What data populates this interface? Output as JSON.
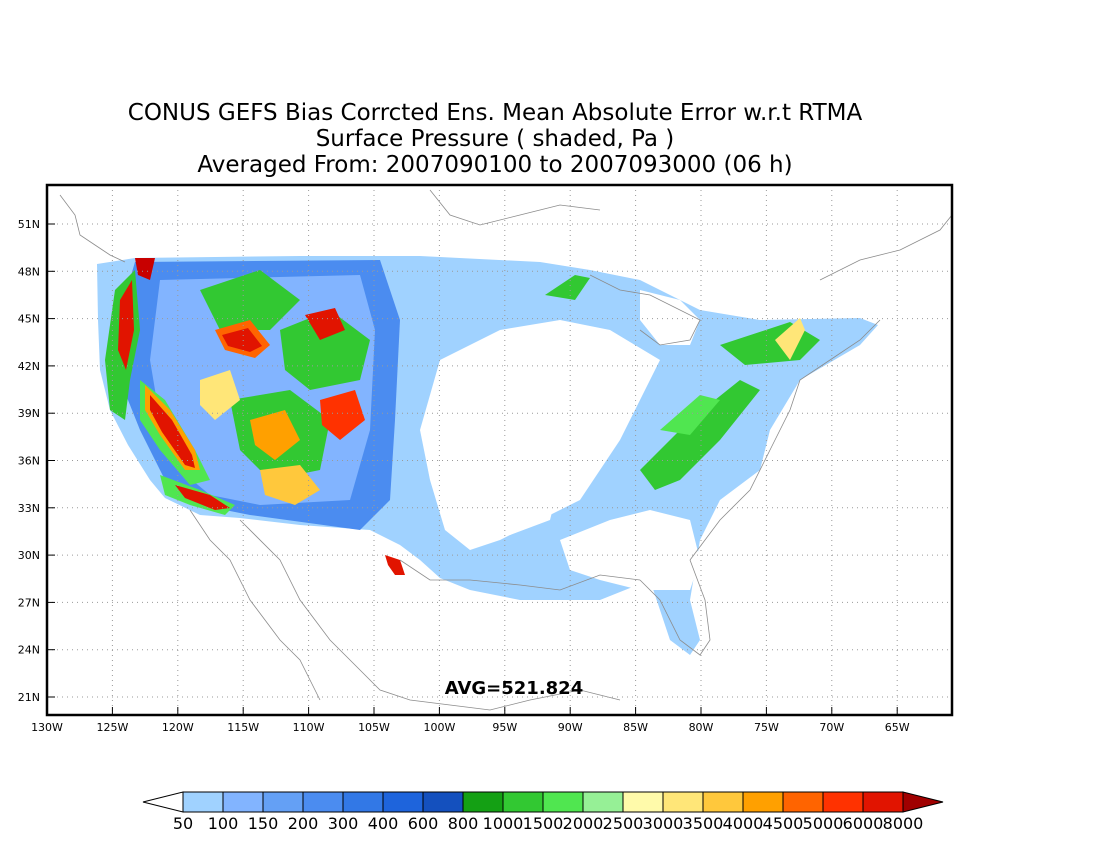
{
  "title": {
    "line1": "CONUS GEFS Bias Corrcted Ens. Mean Absolute Error w.r.t RTMA",
    "line2": "Surface Pressure ( shaded, Pa )",
    "line3": "Averaged From: 2007090100 to 2007093000 (06 h)"
  },
  "avg_label": "AVG=521.824",
  "axes": {
    "lat_labels": [
      "51N",
      "48N",
      "45N",
      "42N",
      "39N",
      "36N",
      "33N",
      "30N",
      "27N",
      "24N",
      "21N"
    ],
    "lon_labels": [
      "130W",
      "125W",
      "120W",
      "115W",
      "110W",
      "105W",
      "100W",
      "95W",
      "90W",
      "85W",
      "80W",
      "75W",
      "70W",
      "65W"
    ]
  },
  "colorbar": {
    "levels": [
      "50",
      "100",
      "150",
      "200",
      "300",
      "400",
      "600",
      "800",
      "1000",
      "1500",
      "2000",
      "2500",
      "3000",
      "3500",
      "4000",
      "4500",
      "5000",
      "6000",
      "8000"
    ],
    "colors": [
      "#a0d2ff",
      "#82b4ff",
      "#64a0f5",
      "#4b8cf0",
      "#3278e6",
      "#1e64dc",
      "#1450be",
      "#14a014",
      "#32c832",
      "#50e650",
      "#96f096",
      "#fffaaa",
      "#ffe678",
      "#ffc83c",
      "#ffa000",
      "#ff6400",
      "#ff3200",
      "#e11400",
      "#c80000",
      "#a00000"
    ]
  }
}
